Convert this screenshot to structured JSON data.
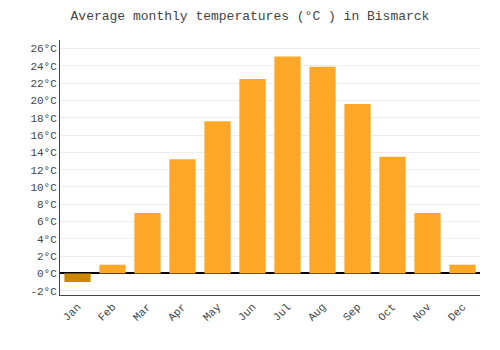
{
  "chart_data": {
    "type": "bar",
    "title": "Average monthly temperatures (°C ) in Bismarck",
    "categories": [
      "Jan",
      "Feb",
      "Mar",
      "Apr",
      "May",
      "Jun",
      "Jul",
      "Aug",
      "Sep",
      "Oct",
      "Nov",
      "Dec"
    ],
    "values": [
      -1.0,
      1.0,
      7.0,
      13.2,
      17.6,
      22.5,
      25.1,
      23.9,
      19.6,
      13.5,
      7.0,
      1.0
    ],
    "colors": [
      "#CC8800",
      "#FFA726",
      "#FFA726",
      "#FFA726",
      "#FFA726",
      "#FFA726",
      "#FFA726",
      "#FFA726",
      "#FFA726",
      "#FFA726",
      "#FFA726",
      "#FFA726"
    ],
    "ylim": [
      -2.5,
      27
    ],
    "yticks": [
      {
        "value": -2,
        "label": "-2°C"
      },
      {
        "value": 0,
        "label": "0°C"
      },
      {
        "value": 2,
        "label": "2°C"
      },
      {
        "value": 4,
        "label": "4°C"
      },
      {
        "value": 6,
        "label": "6°C"
      },
      {
        "value": 8,
        "label": "8°C"
      },
      {
        "value": 10,
        "label": "10°C"
      },
      {
        "value": 12,
        "label": "12°C"
      },
      {
        "value": 14,
        "label": "14°C"
      },
      {
        "value": 16,
        "label": "16°C"
      },
      {
        "value": 18,
        "label": "18°C"
      },
      {
        "value": 20,
        "label": "20°C"
      },
      {
        "value": 22,
        "label": "22°C"
      },
      {
        "value": 24,
        "label": "24°C"
      },
      {
        "value": 26,
        "label": "26°C"
      }
    ],
    "grid": true
  }
}
